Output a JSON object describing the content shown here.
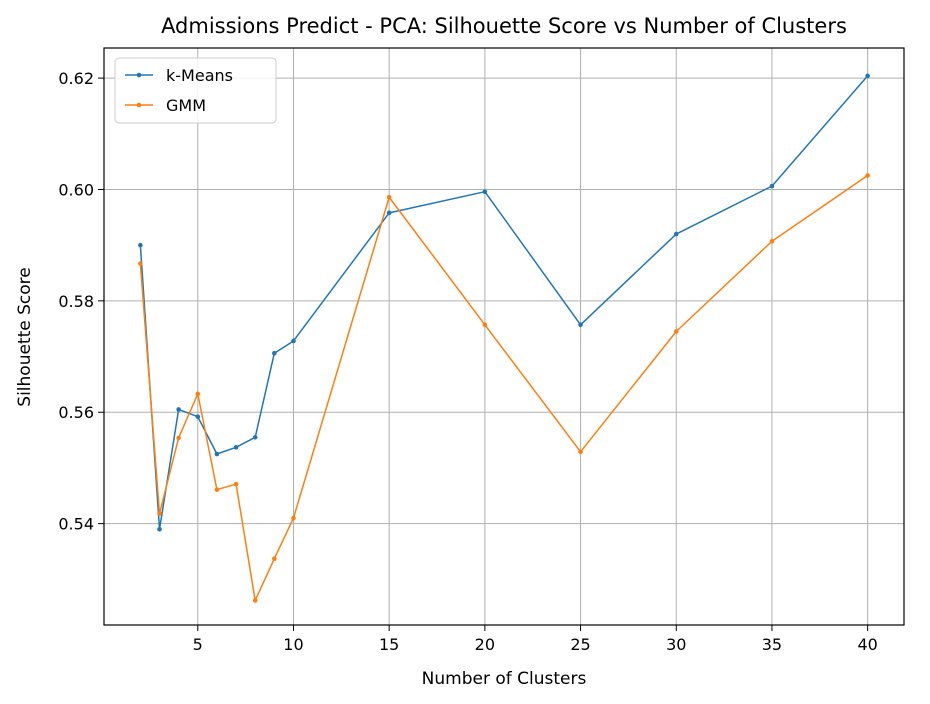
{
  "chart_data": {
    "type": "line",
    "title": "Admissions Predict - PCA: Silhouette Score vs Number of Clusters",
    "xlabel": "Number of Clusters",
    "ylabel": "Silhouette Score",
    "xlim": [
      0.1,
      41.9
    ],
    "ylim": [
      0.5218,
      0.6254
    ],
    "xticks": [
      5,
      10,
      15,
      20,
      25,
      30,
      35,
      40
    ],
    "yticks": [
      0.54,
      0.56,
      0.58,
      0.6,
      0.62
    ],
    "ytick_labels": [
      "0.54",
      "0.56",
      "0.58",
      "0.60",
      "0.62"
    ],
    "grid": true,
    "legend_position": "top-left",
    "x": [
      2,
      3,
      4,
      5,
      6,
      7,
      8,
      9,
      10,
      15,
      20,
      25,
      30,
      35,
      40
    ],
    "series": [
      {
        "name": "k-Means",
        "color": "#1f77b4",
        "values": [
          0.59,
          0.539,
          0.5605,
          0.5592,
          0.5525,
          0.5537,
          0.5555,
          0.5706,
          0.5728,
          0.5958,
          0.5996,
          0.5757,
          0.592,
          0.6006,
          0.6204
        ]
      },
      {
        "name": "GMM",
        "color": "#ff7f0e",
        "values": [
          0.5867,
          0.5418,
          0.5554,
          0.5633,
          0.5461,
          0.5471,
          0.5262,
          0.5337,
          0.541,
          0.5986,
          0.5757,
          0.5529,
          0.5745,
          0.5907,
          0.6025
        ]
      }
    ]
  }
}
